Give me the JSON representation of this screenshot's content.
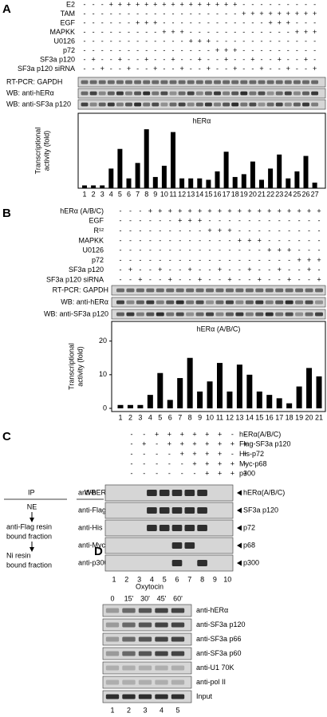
{
  "panel_a": {
    "label": "A",
    "treatments": [
      {
        "name": "E2",
        "signs": [
          "-",
          "-",
          "-",
          "+",
          "+",
          "+",
          "+",
          "+",
          "+",
          "+",
          "+",
          "+",
          "+",
          "+",
          "+",
          "+",
          "+",
          "+",
          "-",
          "-",
          "-",
          "-",
          "-",
          "-",
          "-",
          "-",
          "-"
        ]
      },
      {
        "name": "TAM",
        "signs": [
          "-",
          "-",
          "-",
          "-",
          "-",
          "-",
          "-",
          "-",
          "-",
          "-",
          "-",
          "-",
          "-",
          "-",
          "-",
          "-",
          "-",
          "-",
          "+",
          "+",
          "+",
          "+",
          "+",
          "+",
          "+",
          "+",
          "+"
        ]
      },
      {
        "name": "EGF",
        "signs": [
          "-",
          "-",
          "-",
          "-",
          "-",
          "-",
          "+",
          "+",
          "+",
          "-",
          "-",
          "-",
          "-",
          "-",
          "-",
          "-",
          "-",
          "-",
          "-",
          "-",
          "-",
          "+",
          "+",
          "+",
          "-",
          "-",
          "-"
        ]
      },
      {
        "name": "MAPKK",
        "signs": [
          "-",
          "-",
          "-",
          "-",
          "-",
          "-",
          "-",
          "-",
          "-",
          "+",
          "+",
          "+",
          "-",
          "-",
          "-",
          "-",
          "-",
          "-",
          "-",
          "-",
          "-",
          "-",
          "-",
          "-",
          "+",
          "+",
          "+"
        ]
      },
      {
        "name": "U0126",
        "signs": [
          "-",
          "-",
          "-",
          "-",
          "-",
          "-",
          "-",
          "-",
          "-",
          "-",
          "-",
          "-",
          "+",
          "+",
          "+",
          "-",
          "-",
          "-",
          "-",
          "-",
          "-",
          "-",
          "-",
          "-",
          "-",
          "-",
          "-"
        ]
      },
      {
        "name": "p72",
        "signs": [
          "-",
          "-",
          "-",
          "-",
          "-",
          "-",
          "-",
          "-",
          "-",
          "-",
          "-",
          "-",
          "-",
          "-",
          "-",
          "+",
          "+",
          "+",
          "-",
          "-",
          "-",
          "-",
          "-",
          "-",
          "-",
          "-",
          "-"
        ]
      },
      {
        "name": "SF3a p120",
        "signs": [
          "-",
          "+",
          "-",
          "-",
          "+",
          "-",
          "-",
          "+",
          "-",
          "-",
          "+",
          "-",
          "-",
          "+",
          "-",
          "-",
          "+",
          "-",
          "-",
          "+",
          "-",
          "-",
          "+",
          "-",
          "-",
          "+",
          "-"
        ]
      },
      {
        "name": "SF3a p120 siRNA",
        "signs": [
          "-",
          "-",
          "+",
          "-",
          "-",
          "+",
          "-",
          "-",
          "+",
          "-",
          "-",
          "+",
          "-",
          "-",
          "+",
          "-",
          "-",
          "+",
          "-",
          "-",
          "+",
          "-",
          "-",
          "+",
          "-",
          "-",
          "+"
        ]
      }
    ],
    "blots": [
      "RT-PCR: GAPDH",
      "WB: anti-hERα",
      "WB: anti-SF3a p120"
    ],
    "chart": {
      "type": "bar",
      "title": "hERα",
      "y_label": [
        "Transcriptional",
        "activity (fold)"
      ],
      "categories": [
        "1",
        "2",
        "3",
        "4",
        "5",
        "6",
        "7",
        "8",
        "9",
        "10",
        "11",
        "12",
        "13",
        "14",
        "15",
        "16",
        "17",
        "18",
        "19",
        "20",
        "21",
        "22",
        "23",
        "24",
        "25",
        "26",
        "27"
      ],
      "values": [
        1,
        1,
        1,
        7,
        14,
        3.5,
        9,
        21,
        4,
        8,
        20,
        3.5,
        3.5,
        3.5,
        3,
        6,
        13,
        4,
        5,
        9.5,
        3,
        7,
        12,
        3.5,
        6,
        11.5,
        2
      ],
      "ylim": [
        0,
        25
      ],
      "color": "#000000"
    }
  },
  "panel_b": {
    "label": "B",
    "treatments": [
      {
        "name": "hERα (A/B/C)",
        "signs": [
          "-",
          "-",
          "-",
          "+",
          "+",
          "+",
          "+",
          "+",
          "+",
          "+",
          "+",
          "+",
          "+",
          "+",
          "+",
          "+",
          "+",
          "+",
          "+",
          "+",
          "+"
        ]
      },
      {
        "name": "EGF",
        "signs": [
          "-",
          "-",
          "-",
          "-",
          "-",
          "-",
          "+",
          "+",
          "+",
          "-",
          "-",
          "-",
          "-",
          "-",
          "-",
          "-",
          "-",
          "-",
          "-",
          "-",
          "-"
        ]
      },
      {
        "name": "R¹²",
        "signs": [
          "-",
          "-",
          "-",
          "-",
          "-",
          "-",
          "-",
          "-",
          "-",
          "+",
          "+",
          "+",
          "-",
          "-",
          "-",
          "-",
          "-",
          "-",
          "-",
          "-",
          "-"
        ]
      },
      {
        "name": "MAPKK",
        "signs": [
          "-",
          "-",
          "-",
          "-",
          "-",
          "-",
          "-",
          "-",
          "-",
          "-",
          "-",
          "-",
          "+",
          "+",
          "+",
          "-",
          "-",
          "-",
          "-",
          "-",
          "-"
        ]
      },
      {
        "name": "U0126",
        "signs": [
          "-",
          "-",
          "-",
          "-",
          "-",
          "-",
          "-",
          "-",
          "-",
          "-",
          "-",
          "-",
          "-",
          "-",
          "-",
          "+",
          "+",
          "+",
          "-",
          "-",
          "-"
        ]
      },
      {
        "name": "p72",
        "signs": [
          "-",
          "-",
          "-",
          "-",
          "-",
          "-",
          "-",
          "-",
          "-",
          "-",
          "-",
          "-",
          "-",
          "-",
          "-",
          "-",
          "-",
          "-",
          "+",
          "+",
          "+"
        ]
      },
      {
        "name": "SF3a p120",
        "signs": [
          "-",
          "+",
          "-",
          "-",
          "+",
          "-",
          "-",
          "+",
          "-",
          "-",
          "+",
          "-",
          "-",
          "+",
          "-",
          "-",
          "+",
          "-",
          "-",
          "+",
          "-"
        ]
      },
      {
        "name": "SF3a p120 siRNA",
        "signs": [
          "-",
          "-",
          "+",
          "-",
          "-",
          "+",
          "-",
          "-",
          "+",
          "-",
          "-",
          "+",
          "-",
          "-",
          "+",
          "-",
          "-",
          "+",
          "-",
          "-",
          "+"
        ]
      }
    ],
    "blots": [
      "RT-PCR: GAPDH",
      "WB: anti-hERα",
      "WB: anti-SF3a p120"
    ],
    "chart": {
      "type": "bar",
      "title": "hERα (A/B/C)",
      "y_label": [
        "Transcriptional",
        "activity (fold)"
      ],
      "categories": [
        "1",
        "2",
        "3",
        "4",
        "5",
        "6",
        "7",
        "8",
        "9",
        "10",
        "11",
        "12",
        "13",
        "14",
        "15",
        "16",
        "17",
        "18",
        "19",
        "20",
        "21"
      ],
      "values": [
        1,
        1,
        1,
        4,
        10.5,
        2.5,
        9,
        15,
        5,
        8,
        13.5,
        5,
        13,
        10,
        5,
        4,
        3,
        1.5,
        6.5,
        12,
        9.5
      ],
      "ylim": [
        0,
        23
      ],
      "yticks": [
        0,
        10,
        20
      ],
      "color": "#000000"
    }
  },
  "panel_c": {
    "label": "C",
    "treatments": [
      {
        "name": "hERα(A/B/C)",
        "signs": [
          "-",
          "-",
          "+",
          "+",
          "+",
          "+",
          "+",
          "+",
          "-",
          "-"
        ]
      },
      {
        "name": "Flag-SF3a p120",
        "signs": [
          "-",
          "+",
          "-",
          "+",
          "+",
          "+",
          "+",
          "+",
          "+",
          "+"
        ]
      },
      {
        "name": "His-p72",
        "signs": [
          "-",
          "-",
          "-",
          "-",
          "+",
          "+",
          "+",
          "+",
          "-",
          "+"
        ]
      },
      {
        "name": "Myc-p68",
        "signs": [
          "-",
          "-",
          "-",
          "-",
          "-",
          "+",
          "+",
          "+",
          "+",
          "-"
        ]
      },
      {
        "name": "p300",
        "signs": [
          "-",
          "-",
          "-",
          "-",
          "-",
          "-",
          "+",
          "+",
          "+",
          "+"
        ]
      }
    ],
    "ip_header": "IP",
    "wb_header": "WB",
    "ip_steps": [
      "NE",
      "anti-Flag resin",
      "bound fraction",
      "Ni resin",
      "bound fraction"
    ],
    "blots": [
      {
        "antibody": "anti-hERα",
        "band": "hERα(A/B/C)"
      },
      {
        "antibody": "anti-Flag",
        "band": "SF3a p120"
      },
      {
        "antibody": "anti-His",
        "band": "p72"
      },
      {
        "antibody": "anti-Myc",
        "band": "p68"
      },
      {
        "antibody": "anti-p300",
        "band": "p300"
      }
    ],
    "lanes": [
      "1",
      "2",
      "3",
      "4",
      "5",
      "6",
      "7",
      "8",
      "9",
      "10"
    ]
  },
  "panel_d": {
    "label": "D",
    "treatment": "Oxytocin",
    "times": [
      "0",
      "15'",
      "30'",
      "45'",
      "60'"
    ],
    "blots": [
      "anti-hERα",
      "anti-SF3a p120",
      "anti-SF3a p66",
      "anti-SF3a p60",
      "anti-U1 70K",
      "anti-pol II",
      "Input"
    ],
    "lanes": [
      "1",
      "2",
      "3",
      "4",
      "5"
    ]
  }
}
